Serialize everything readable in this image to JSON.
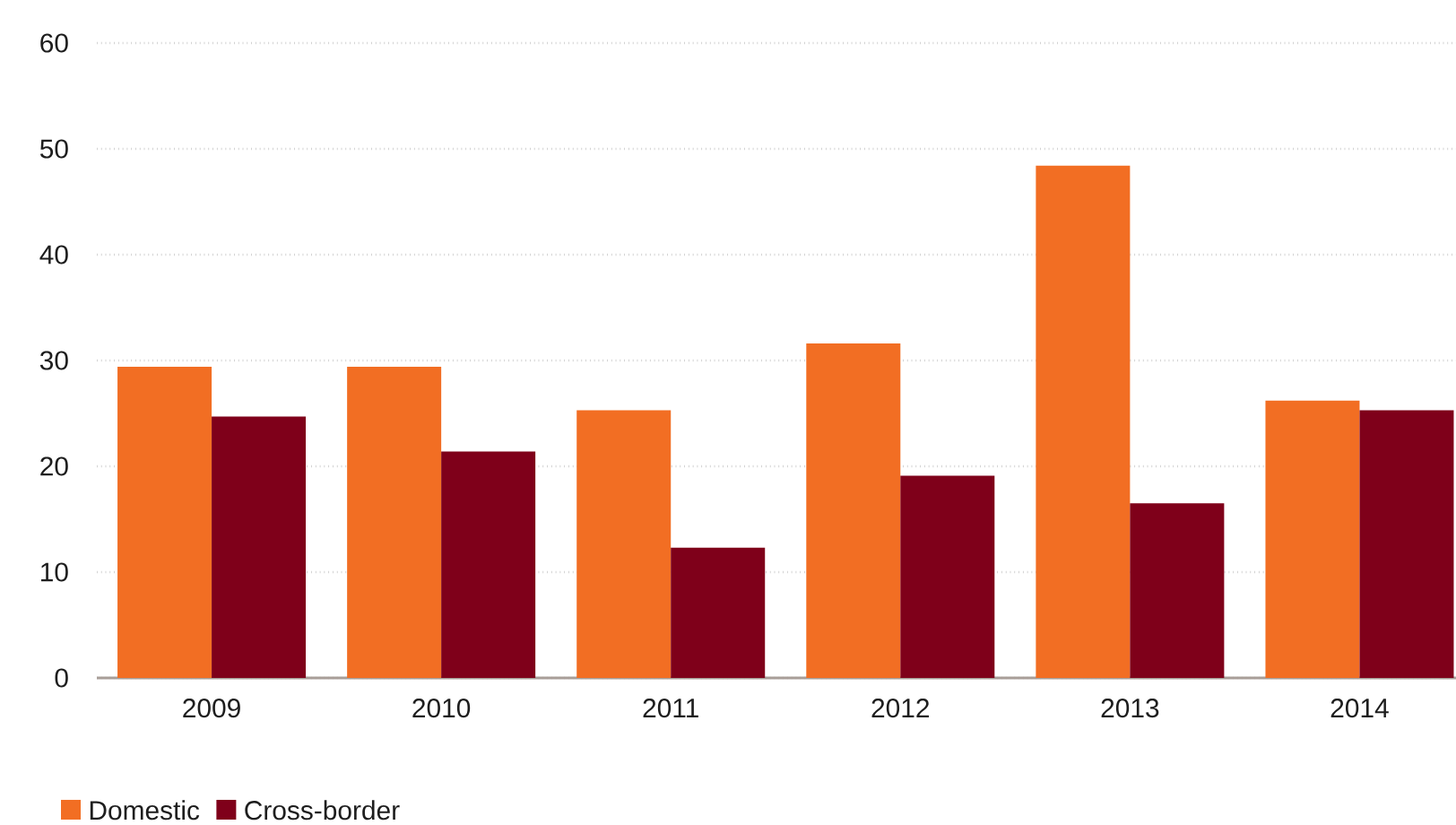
{
  "chart_data": {
    "type": "bar",
    "categories": [
      "2009",
      "2010",
      "2011",
      "2012",
      "2013",
      "2014"
    ],
    "series": [
      {
        "name": "Domestic",
        "color": "#f26e23",
        "values": [
          29.4,
          29.4,
          25.3,
          31.6,
          48.4,
          26.2
        ]
      },
      {
        "name": "Cross-border",
        "color": "#7f001a",
        "values": [
          24.7,
          21.4,
          12.3,
          19.1,
          16.5,
          25.3
        ]
      }
    ],
    "ylim": [
      0,
      60
    ],
    "yticks": [
      0,
      10,
      20,
      30,
      40,
      50,
      60
    ],
    "grid": "y",
    "legend": "bottom left"
  }
}
